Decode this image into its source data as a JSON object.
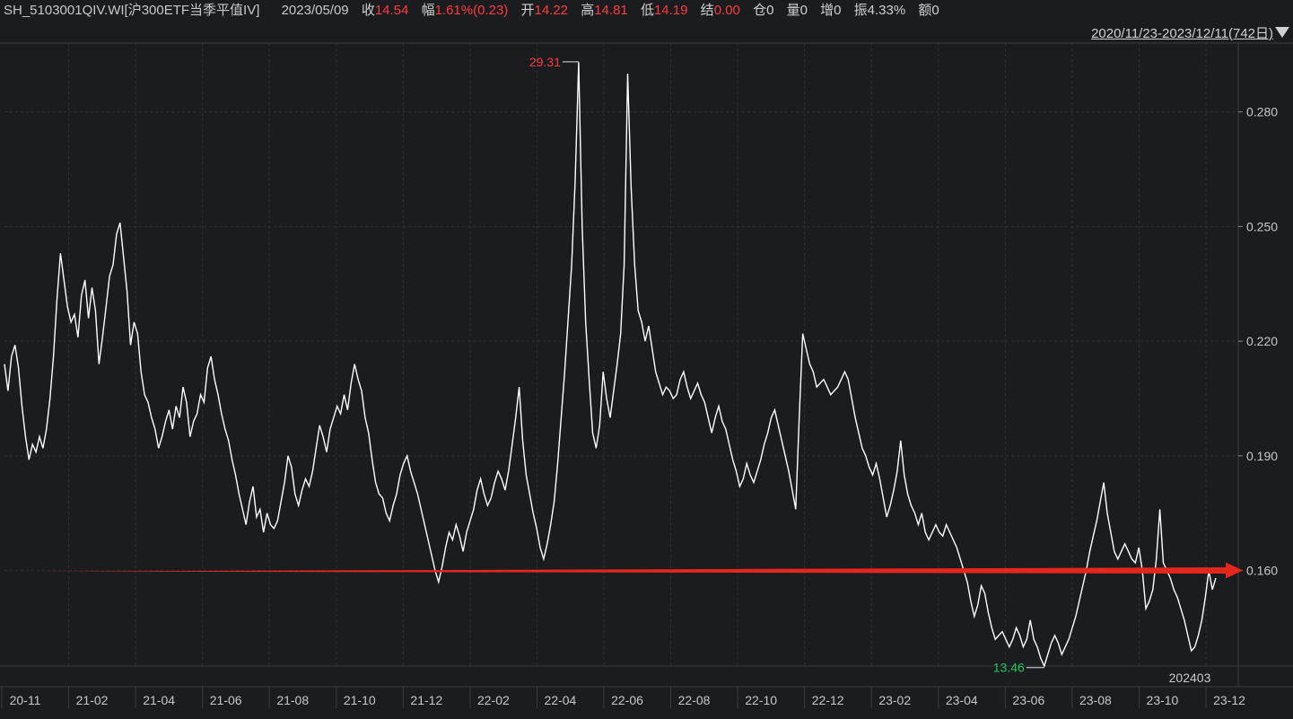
{
  "header": {
    "symbol": "SH_5103001QIV.WI[沪300ETF当季平值IV]",
    "date": "2023/05/09",
    "close_label": "收",
    "close_value": "14.54",
    "change_label": "幅",
    "change_value": "1.61%(0.23)",
    "open_label": "开",
    "open_value": "14.22",
    "high_label": "高",
    "high_value": "14.81",
    "low_label": "低",
    "low_value": "14.19",
    "settle_label": "结",
    "settle_value": "0.00",
    "position_label": "仓",
    "position_value": "0",
    "volume_label": "量",
    "volume_value": "0",
    "increase_label": "增",
    "increase_value": "0",
    "amplitude_label": "振",
    "amplitude_value": "4.33%",
    "amount_label": "额",
    "amount_value": "0"
  },
  "range_selector": "2020/11/23-2023/12/11(742日)",
  "colors": {
    "background": "#1b1c20",
    "line": "#ffffff",
    "grid": "#2f3036",
    "max": "#ff3b3b",
    "min": "#22c55e",
    "arrow": "#e5261d"
  },
  "chart_data": {
    "type": "line",
    "ylim": [
      0.135,
      0.298
    ],
    "yticks": [
      "0.280",
      "0.250",
      "0.220",
      "0.190",
      "0.160"
    ],
    "ytick_values": [
      0.28,
      0.25,
      0.22,
      0.19,
      0.16
    ],
    "xticks": [
      "20-11",
      "21-02",
      "21-04",
      "21-06",
      "21-08",
      "21-10",
      "21-12",
      "22-02",
      "22-04",
      "22-06",
      "22-08",
      "22-10",
      "22-12",
      "23-02",
      "23-04",
      "23-06",
      "23-08",
      "23-10",
      "23-12"
    ],
    "x_end_label": "202403",
    "max_label": "29.31",
    "max_value": 0.2931,
    "min_label": "13.46",
    "min_value": 0.1346,
    "reference_level": 0.16,
    "series": [
      {
        "values": [
          0.214,
          0.207,
          0.216,
          0.219,
          0.213,
          0.203,
          0.195,
          0.189,
          0.193,
          0.191,
          0.195,
          0.192,
          0.197,
          0.205,
          0.216,
          0.231,
          0.243,
          0.236,
          0.229,
          0.225,
          0.227,
          0.221,
          0.232,
          0.236,
          0.226,
          0.234,
          0.228,
          0.214,
          0.221,
          0.229,
          0.237,
          0.24,
          0.248,
          0.251,
          0.242,
          0.233,
          0.219,
          0.225,
          0.222,
          0.212,
          0.206,
          0.204,
          0.2,
          0.197,
          0.192,
          0.195,
          0.199,
          0.202,
          0.197,
          0.203,
          0.2,
          0.208,
          0.204,
          0.195,
          0.199,
          0.201,
          0.206,
          0.204,
          0.213,
          0.216,
          0.21,
          0.206,
          0.201,
          0.197,
          0.194,
          0.189,
          0.185,
          0.18,
          0.176,
          0.172,
          0.178,
          0.182,
          0.174,
          0.176,
          0.17,
          0.175,
          0.172,
          0.171,
          0.173,
          0.178,
          0.183,
          0.19,
          0.187,
          0.18,
          0.177,
          0.181,
          0.184,
          0.182,
          0.186,
          0.192,
          0.198,
          0.195,
          0.191,
          0.197,
          0.2,
          0.203,
          0.201,
          0.206,
          0.202,
          0.209,
          0.214,
          0.21,
          0.207,
          0.2,
          0.196,
          0.189,
          0.183,
          0.18,
          0.179,
          0.175,
          0.173,
          0.177,
          0.18,
          0.185,
          0.188,
          0.19,
          0.186,
          0.183,
          0.18,
          0.176,
          0.172,
          0.168,
          0.164,
          0.16,
          0.157,
          0.161,
          0.166,
          0.17,
          0.168,
          0.172,
          0.169,
          0.165,
          0.17,
          0.173,
          0.176,
          0.181,
          0.184,
          0.18,
          0.177,
          0.179,
          0.183,
          0.186,
          0.184,
          0.181,
          0.186,
          0.193,
          0.2,
          0.208,
          0.194,
          0.185,
          0.18,
          0.175,
          0.171,
          0.166,
          0.163,
          0.167,
          0.172,
          0.178,
          0.188,
          0.2,
          0.212,
          0.226,
          0.24,
          0.262,
          0.293,
          0.25,
          0.225,
          0.21,
          0.196,
          0.192,
          0.198,
          0.212,
          0.205,
          0.2,
          0.207,
          0.214,
          0.222,
          0.24,
          0.29,
          0.26,
          0.24,
          0.228,
          0.225,
          0.22,
          0.224,
          0.218,
          0.212,
          0.209,
          0.206,
          0.208,
          0.207,
          0.205,
          0.206,
          0.21,
          0.212,
          0.208,
          0.205,
          0.207,
          0.209,
          0.206,
          0.204,
          0.2,
          0.196,
          0.2,
          0.203,
          0.199,
          0.197,
          0.193,
          0.189,
          0.186,
          0.182,
          0.184,
          0.188,
          0.185,
          0.183,
          0.186,
          0.189,
          0.193,
          0.196,
          0.2,
          0.202,
          0.198,
          0.194,
          0.19,
          0.186,
          0.181,
          0.176,
          0.2,
          0.222,
          0.218,
          0.214,
          0.212,
          0.208,
          0.209,
          0.21,
          0.208,
          0.206,
          0.207,
          0.208,
          0.21,
          0.212,
          0.21,
          0.205,
          0.2,
          0.196,
          0.192,
          0.19,
          0.187,
          0.185,
          0.188,
          0.184,
          0.179,
          0.174,
          0.177,
          0.181,
          0.186,
          0.194,
          0.185,
          0.18,
          0.177,
          0.175,
          0.172,
          0.175,
          0.17,
          0.168,
          0.17,
          0.172,
          0.17,
          0.169,
          0.172,
          0.17,
          0.168,
          0.166,
          0.163,
          0.16,
          0.157,
          0.152,
          0.148,
          0.151,
          0.156,
          0.154,
          0.149,
          0.145,
          0.142,
          0.143,
          0.144,
          0.142,
          0.14,
          0.142,
          0.145,
          0.143,
          0.14,
          0.142,
          0.147,
          0.142,
          0.14,
          0.137,
          0.135,
          0.138,
          0.141,
          0.143,
          0.141,
          0.138,
          0.14,
          0.142,
          0.145,
          0.148,
          0.152,
          0.156,
          0.16,
          0.165,
          0.169,
          0.173,
          0.178,
          0.183,
          0.175,
          0.17,
          0.165,
          0.163,
          0.165,
          0.167,
          0.165,
          0.163,
          0.162,
          0.166,
          0.16,
          0.15,
          0.152,
          0.155,
          0.163,
          0.176,
          0.162,
          0.16,
          0.158,
          0.155,
          0.153,
          0.15,
          0.147,
          0.143,
          0.139,
          0.14,
          0.143,
          0.147,
          0.153,
          0.16,
          0.155,
          0.158
        ]
      }
    ]
  }
}
